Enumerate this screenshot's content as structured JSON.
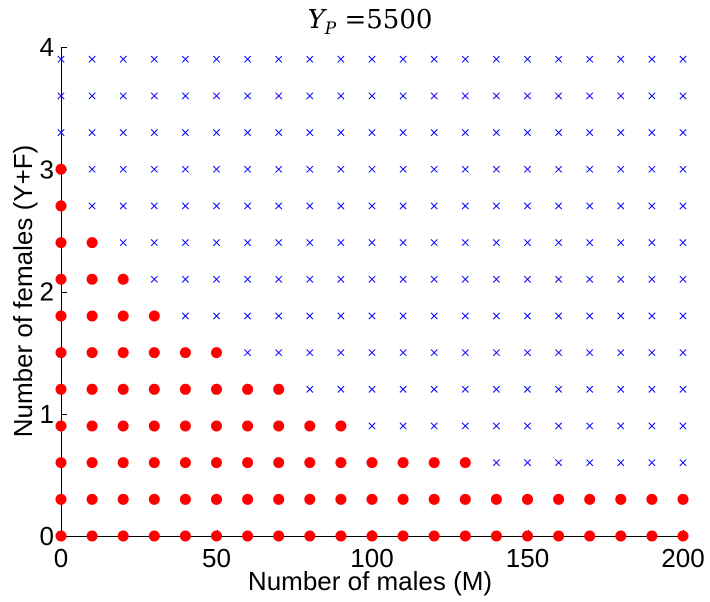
{
  "chart_data": {
    "type": "scatter",
    "title": {
      "main": "Y",
      "sub": "P",
      "rest": " =5500"
    },
    "xlabel": "Number of males (M)",
    "ylabel": "Number of females (Y+F)",
    "xlim": [
      0,
      200
    ],
    "ylim": [
      0,
      4
    ],
    "xticks": [
      0,
      50,
      100,
      150,
      200
    ],
    "yticks": [
      0,
      1,
      2,
      3,
      4
    ],
    "grid": false,
    "x_step": 10,
    "y_levels": [
      0,
      0.3,
      0.6,
      0.9,
      1.2,
      1.5,
      1.8,
      2.1,
      2.4,
      2.7,
      3.0,
      3.3,
      3.6,
      3.9
    ],
    "viable_max_x_by_level": [
      200,
      200,
      130,
      90,
      70,
      50,
      30,
      20,
      10,
      0,
      0,
      -1,
      -1,
      -1
    ],
    "series": [
      {
        "marker": "filled-circle",
        "color": "#ff0000"
      },
      {
        "marker": "x",
        "color": "#0000ff"
      }
    ]
  }
}
